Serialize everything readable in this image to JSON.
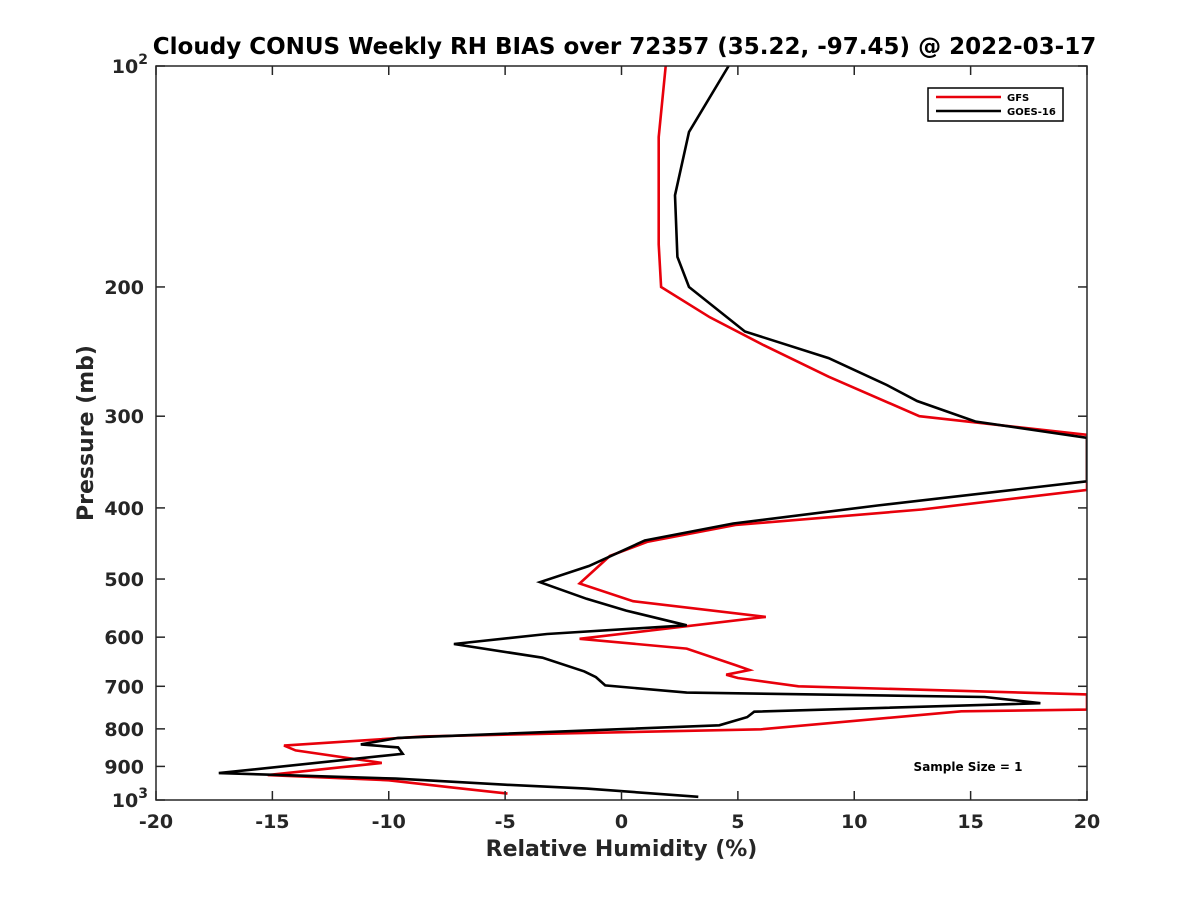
{
  "chart_data": {
    "type": "line",
    "title": "Cloudy CONUS Weekly RH BIAS over 72357 (35.22, -97.45) @ 2022-03-17",
    "xlabel": "Relative Humidity (%)",
    "ylabel": "Pressure (mb)",
    "xlim": [
      -20,
      20
    ],
    "ylim": [
      100,
      1000
    ],
    "yscale": "log",
    "y_reversed": true,
    "grid": false,
    "legend_placement": "top-right",
    "x_ticks": [
      "-20",
      "-15",
      "-10",
      "-5",
      "0",
      "5",
      "10",
      "15",
      "20"
    ],
    "y_ticks": [
      {
        "value": 100,
        "base": "10",
        "exp": "2"
      },
      {
        "value": 200,
        "label": "200"
      },
      {
        "value": 300,
        "label": "300"
      },
      {
        "value": 400,
        "label": "400"
      },
      {
        "value": 500,
        "label": "500"
      },
      {
        "value": 600,
        "label": "600"
      },
      {
        "value": 700,
        "label": "700"
      },
      {
        "value": 800,
        "label": "800"
      },
      {
        "value": 900,
        "label": "900"
      },
      {
        "value": 1000,
        "base": "10",
        "exp": "3"
      }
    ],
    "annotation": "Sample Size = 1",
    "series": [
      {
        "name": "GFS",
        "color": "#e8000b",
        "points": [
          [
            1.9,
            100
          ],
          [
            1.6,
            125
          ],
          [
            1.6,
            150
          ],
          [
            1.6,
            175
          ],
          [
            1.7,
            200
          ],
          [
            3.8,
            220
          ],
          [
            6.1,
            240
          ],
          [
            8.9,
            265
          ],
          [
            12.8,
            300
          ],
          [
            20.0,
            318
          ],
          [
            20.0,
            378
          ],
          [
            12.9,
            402
          ],
          [
            4.9,
            422
          ],
          [
            1.1,
            445
          ],
          [
            -0.5,
            465
          ],
          [
            -1.8,
            507
          ],
          [
            0.5,
            536
          ],
          [
            6.2,
            563
          ],
          [
            -1.8,
            603
          ],
          [
            2.8,
            622
          ],
          [
            4.9,
            655
          ],
          [
            5.5,
            665
          ],
          [
            4.5,
            675
          ],
          [
            5.0,
            682
          ],
          [
            7.6,
            700
          ],
          [
            20.0,
            718
          ],
          [
            20.0,
            753
          ],
          [
            14.6,
            757
          ],
          [
            6.0,
            801
          ],
          [
            -8.5,
            819
          ],
          [
            -14.5,
            843
          ],
          [
            -14.0,
            856
          ],
          [
            -10.3,
            890
          ],
          [
            -15.2,
            925
          ],
          [
            -10.0,
            940
          ],
          [
            -7.2,
            962
          ],
          [
            -4.9,
            980
          ]
        ]
      },
      {
        "name": "GOES-16",
        "color": "#000000",
        "points": [
          [
            4.6,
            100
          ],
          [
            2.9,
            123
          ],
          [
            2.3,
            150
          ],
          [
            2.4,
            182
          ],
          [
            2.9,
            200
          ],
          [
            5.3,
            230
          ],
          [
            8.9,
            250
          ],
          [
            11.4,
            272
          ],
          [
            12.7,
            286
          ],
          [
            15.2,
            305
          ],
          [
            20.0,
            321
          ],
          [
            20.0,
            368
          ],
          [
            11.0,
            397
          ],
          [
            4.8,
            420
          ],
          [
            1.0,
            443
          ],
          [
            -1.4,
            480
          ],
          [
            -3.5,
            505
          ],
          [
            -1.5,
            532
          ],
          [
            0.2,
            552
          ],
          [
            2.8,
            578
          ],
          [
            -3.2,
            594
          ],
          [
            -7.2,
            613
          ],
          [
            -3.4,
            640
          ],
          [
            -1.6,
            668
          ],
          [
            -1.1,
            680
          ],
          [
            -0.7,
            698
          ],
          [
            2.8,
            714
          ],
          [
            15.6,
            724
          ],
          [
            18.0,
            738
          ],
          [
            5.7,
            758
          ],
          [
            5.4,
            771
          ],
          [
            4.2,
            791
          ],
          [
            -9.6,
            823
          ],
          [
            -11.2,
            840
          ],
          [
            -9.6,
            848
          ],
          [
            -9.4,
            865
          ],
          [
            -17.3,
            919
          ],
          [
            -9.7,
            935
          ],
          [
            -5.0,
            953
          ],
          [
            -1.5,
            965
          ],
          [
            3.3,
            990
          ]
        ]
      }
    ]
  }
}
